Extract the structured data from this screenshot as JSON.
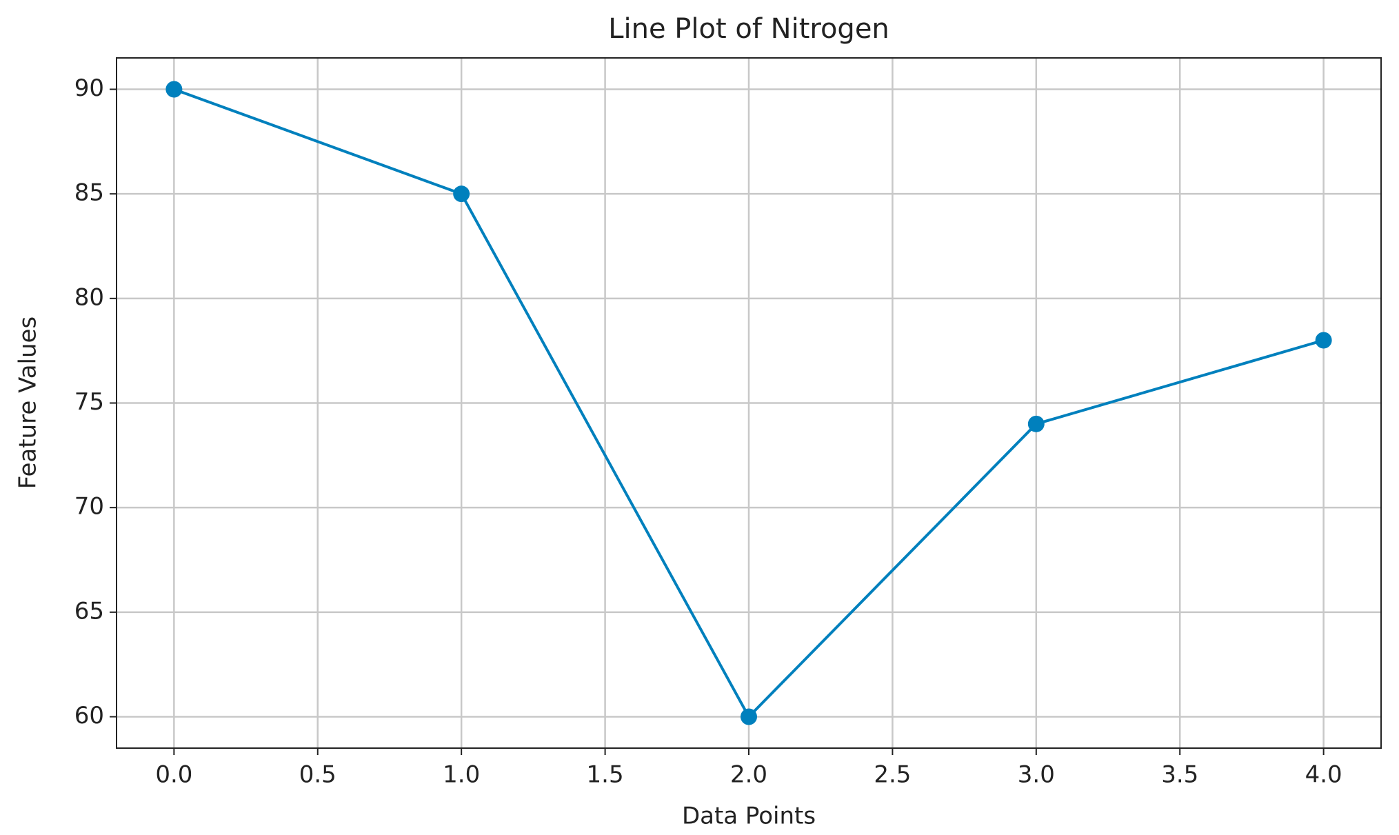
{
  "chart_data": {
    "type": "line",
    "title": "Line Plot of Nitrogen",
    "x_label": "Data Points",
    "y_label": "Feature Values",
    "x": [
      0,
      1,
      2,
      3,
      4
    ],
    "series": [
      {
        "name": "Nitrogen",
        "color": "#0080bd",
        "values": [
          90,
          85,
          60,
          74,
          78
        ]
      }
    ],
    "xlim": [
      -0.2,
      4.2
    ],
    "xticks": [
      {
        "value": 0,
        "label": "0.0"
      },
      0.5,
      {
        "value": 1,
        "label": "1.0"
      },
      1.5,
      {
        "value": 2,
        "label": "2.0"
      },
      2.5,
      {
        "value": 3,
        "label": "3.0"
      },
      3.5,
      {
        "value": 4,
        "label": "4.0"
      }
    ],
    "ylim": [
      58.5,
      91.5
    ],
    "yticks": [
      60,
      65,
      70,
      75,
      80,
      85,
      90
    ],
    "grid": true
  }
}
